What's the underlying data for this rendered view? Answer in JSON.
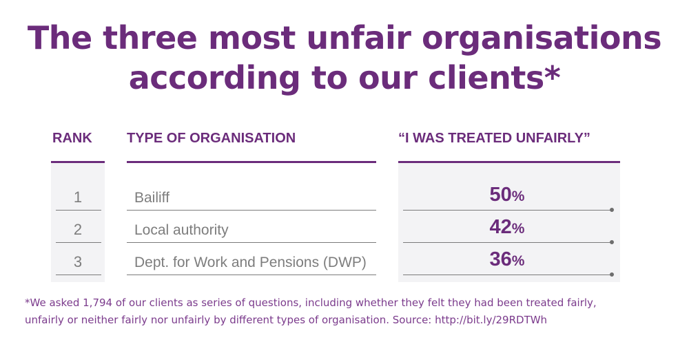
{
  "title": {
    "line1": "The three most unfair organisations",
    "line2": "according to our clients*"
  },
  "table": {
    "headers": {
      "rank": "RANK",
      "type": "TYPE OF ORGANISATION",
      "treated": "“I WAS TREATED UNFAIRLY”"
    },
    "rows": [
      {
        "rank": "1",
        "organisation": "Bailiff",
        "value": "50",
        "unit": "%"
      },
      {
        "rank": "2",
        "organisation": "Local authority",
        "value": "42",
        "unit": "%"
      },
      {
        "rank": "3",
        "organisation": "Dept. for Work and Pensions (DWP)",
        "value": "36",
        "unit": "%"
      }
    ]
  },
  "footnote": {
    "line1": "*We asked 1,794 of our clients as series of questions, including whether they felt they had been treated fairly,",
    "line2": "unfairly or neither fairly nor unfairly by different types of organisation. Source: http://bit.ly/29RDTWh"
  },
  "colors": {
    "accent": "#6b2c7b",
    "body_text": "#7d7d7d",
    "panel": "#f3f3f5"
  }
}
